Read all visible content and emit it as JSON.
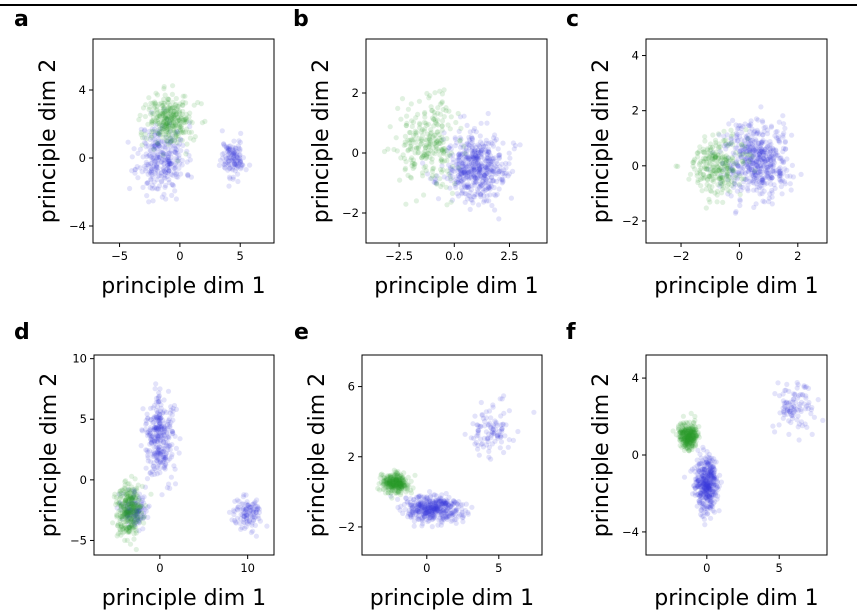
{
  "chart_data": [
    {
      "panel": "a",
      "type": "scatter",
      "xlabel": "principle dim 1",
      "ylabel": "principle dim 2",
      "xlim": [
        -7.2,
        7.8
      ],
      "ylim": [
        -5.0,
        7.0
      ],
      "xticks": [
        {
          "v": -5,
          "label": "−5"
        },
        {
          "v": 0,
          "label": "0"
        },
        {
          "v": 5,
          "label": "5"
        }
      ],
      "yticks": [
        {
          "v": -4,
          "label": "−4"
        },
        {
          "v": 0,
          "label": "0"
        },
        {
          "v": 4,
          "label": "4"
        }
      ],
      "series": [
        {
          "color": "#3c3cdc",
          "alpha": 0.14,
          "seed": 11,
          "n": 420,
          "clusters": [
            [
              -1.5,
              0.0,
              1.8,
              1.9,
              0.7
            ],
            [
              4.4,
              0.0,
              0.9,
              1.0,
              0.3
            ]
          ]
        },
        {
          "color": "#2e9a2e",
          "alpha": 0.14,
          "seed": 12,
          "n": 300,
          "clusters": [
            [
              -0.8,
              2.2,
              1.7,
              1.4,
              1.0
            ]
          ]
        }
      ]
    },
    {
      "panel": "b",
      "type": "scatter",
      "xlabel": "principle dim 1",
      "ylabel": "principle dim 2",
      "xlim": [
        -4.0,
        4.2
      ],
      "ylim": [
        -3.0,
        3.8
      ],
      "xticks": [
        {
          "v": -2.5,
          "label": "−2.5"
        },
        {
          "v": 0,
          "label": "0.0"
        },
        {
          "v": 2.5,
          "label": "2.5"
        }
      ],
      "yticks": [
        {
          "v": -2,
          "label": "−2"
        },
        {
          "v": 0,
          "label": "0"
        },
        {
          "v": 2,
          "label": "2"
        }
      ],
      "series": [
        {
          "color": "#3c3cdc",
          "alpha": 0.14,
          "seed": 21,
          "n": 520,
          "clusters": [
            [
              1.0,
              -0.5,
              1.3,
              1.0,
              1.0
            ]
          ]
        },
        {
          "color": "#2e9a2e",
          "alpha": 0.14,
          "seed": 22,
          "n": 260,
          "clusters": [
            [
              -1.2,
              0.3,
              1.2,
              1.3,
              1.0
            ]
          ]
        }
      ]
    },
    {
      "panel": "c",
      "type": "scatter",
      "xlabel": "principle dim 1",
      "ylabel": "principle dim 2",
      "xlim": [
        -3.2,
        3.0
      ],
      "ylim": [
        -2.8,
        4.6
      ],
      "xticks": [
        {
          "v": -2,
          "label": "−2"
        },
        {
          "v": 0,
          "label": "0"
        },
        {
          "v": 2,
          "label": "2"
        }
      ],
      "yticks": [
        {
          "v": -2,
          "label": "−2"
        },
        {
          "v": 0,
          "label": "0"
        },
        {
          "v": 2,
          "label": "2"
        },
        {
          "v": 4,
          "label": "4"
        }
      ],
      "series": [
        {
          "color": "#3c3cdc",
          "alpha": 0.14,
          "seed": 31,
          "n": 520,
          "clusters": [
            [
              0.6,
              0.2,
              1.0,
              1.2,
              1.0
            ]
          ]
        },
        {
          "color": "#2e9a2e",
          "alpha": 0.14,
          "seed": 32,
          "n": 260,
          "clusters": [
            [
              -0.8,
              0.0,
              0.9,
              1.0,
              1.0
            ]
          ]
        }
      ]
    },
    {
      "panel": "d",
      "type": "scatter",
      "xlabel": "principle dim 1",
      "ylabel": "principle dim 2",
      "xlim": [
        -7.5,
        13.0
      ],
      "ylim": [
        -6.2,
        10.3
      ],
      "xticks": [
        {
          "v": 0,
          "label": "0"
        },
        {
          "v": 10,
          "label": "10"
        }
      ],
      "yticks": [
        {
          "v": -5,
          "label": "−5"
        },
        {
          "v": 0,
          "label": "0"
        },
        {
          "v": 5,
          "label": "5"
        },
        {
          "v": 10,
          "label": "10"
        }
      ],
      "series": [
        {
          "color": "#3c3cdc",
          "alpha": 0.14,
          "seed": 41,
          "n": 560,
          "clusters": [
            [
              0.0,
              3.5,
              1.6,
              3.0,
              0.55
            ],
            [
              -3.0,
              -2.5,
              1.3,
              1.5,
              0.25
            ],
            [
              10.0,
              -2.8,
              1.4,
              1.2,
              0.2
            ]
          ]
        },
        {
          "color": "#2e9a2e",
          "alpha": 0.14,
          "seed": 42,
          "n": 300,
          "clusters": [
            [
              -3.5,
              -2.5,
              1.3,
              2.2,
              1.0
            ]
          ]
        }
      ]
    },
    {
      "panel": "e",
      "type": "scatter",
      "xlabel": "principle dim 1",
      "ylabel": "principle dim 2",
      "xlim": [
        -4.5,
        8.0
      ],
      "ylim": [
        -3.6,
        7.8
      ],
      "xticks": [
        {
          "v": 0,
          "label": "0"
        },
        {
          "v": 5,
          "label": "5"
        }
      ],
      "yticks": [
        {
          "v": -2,
          "label": "−2"
        },
        {
          "v": 2,
          "label": "2"
        },
        {
          "v": 6,
          "label": "6"
        }
      ],
      "series": [
        {
          "color": "#3c3cdc",
          "alpha": 0.14,
          "seed": 51,
          "n": 520,
          "clusters": [
            [
              0.5,
              -1.0,
              1.8,
              0.7,
              0.8
            ],
            [
              4.5,
              3.5,
              1.4,
              1.3,
              0.2
            ]
          ]
        },
        {
          "color": "#2e9a2e",
          "alpha": 0.14,
          "seed": 52,
          "n": 300,
          "clusters": [
            [
              -2.2,
              0.5,
              0.8,
              0.5,
              1.0
            ]
          ]
        }
      ]
    },
    {
      "panel": "f",
      "type": "scatter",
      "xlabel": "principle dim 1",
      "ylabel": "principle dim 2",
      "xlim": [
        -4.2,
        8.3
      ],
      "ylim": [
        -5.2,
        5.2
      ],
      "xticks": [
        {
          "v": 0,
          "label": "0"
        },
        {
          "v": 5,
          "label": "5"
        }
      ],
      "yticks": [
        {
          "v": -4,
          "label": "−4"
        },
        {
          "v": 0,
          "label": "0"
        },
        {
          "v": 4,
          "label": "4"
        }
      ],
      "series": [
        {
          "color": "#3c3cdc",
          "alpha": 0.14,
          "seed": 61,
          "n": 520,
          "clusters": [
            [
              0.0,
              -1.5,
              0.7,
              1.3,
              0.8
            ],
            [
              6.0,
              2.5,
              1.2,
              1.2,
              0.2
            ]
          ]
        },
        {
          "color": "#2e9a2e",
          "alpha": 0.14,
          "seed": 62,
          "n": 300,
          "clusters": [
            [
              -1.3,
              1.0,
              0.6,
              0.6,
              1.0
            ]
          ]
        }
      ]
    }
  ]
}
